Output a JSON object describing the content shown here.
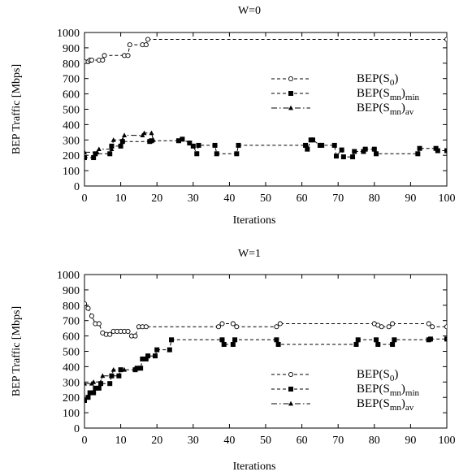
{
  "chart_data": [
    {
      "type": "line",
      "title": "W=0",
      "xlabel": "Iterations",
      "ylabel": "BEP Traffic [Mbps]",
      "xlim": [
        0,
        100
      ],
      "ylim": [
        0,
        1000
      ],
      "xticks": [
        0,
        10,
        20,
        30,
        40,
        50,
        60,
        70,
        80,
        90,
        100
      ],
      "yticks": [
        0,
        100,
        200,
        300,
        400,
        500,
        600,
        700,
        800,
        900,
        1000
      ],
      "grid": false,
      "legend_position": "right",
      "series": [
        {
          "name": "BEP(S0)",
          "legend_main": "BEP(S",
          "legend_sub": "0",
          "legend_close": ")",
          "marker": "circle-open",
          "dash": "dashed",
          "x": [
            0,
            1,
            1.5,
            2,
            4,
            5,
            5.5,
            11,
            12,
            12.5,
            16,
            17,
            17.5,
            100
          ],
          "y": [
            810,
            810,
            820,
            820,
            820,
            820,
            850,
            850,
            850,
            920,
            920,
            920,
            955,
            955
          ]
        },
        {
          "name": "BEP(Smn)min",
          "legend_main": "BEP(S",
          "legend_sub": "mn",
          "legend_close": ")",
          "legend_sub2": "min",
          "marker": "square-filled",
          "dash": "dashed",
          "x": [
            0,
            2.5,
            3,
            7,
            7.5,
            10,
            10.5,
            18,
            18.5,
            26,
            27,
            29,
            30,
            31,
            31.5,
            36,
            36.5,
            42,
            42.5,
            61,
            61.5,
            62.5,
            63,
            65,
            65.5,
            69,
            69.5,
            71,
            71.5,
            74,
            74.5,
            77,
            77.5,
            80,
            80.5,
            92,
            92.5,
            97,
            97.5,
            100
          ],
          "y": [
            185,
            185,
            210,
            210,
            260,
            260,
            290,
            290,
            295,
            295,
            305,
            280,
            260,
            210,
            265,
            265,
            210,
            210,
            265,
            265,
            240,
            300,
            300,
            265,
            265,
            265,
            195,
            235,
            190,
            190,
            225,
            225,
            240,
            240,
            210,
            210,
            245,
            245,
            230,
            230
          ]
        },
        {
          "name": "BEP(Smn)av",
          "legend_main": "BEP(S",
          "legend_sub": "mn",
          "legend_close": ")",
          "legend_sub2": "av",
          "marker": "triangle-filled",
          "dash": "dashdot",
          "x": [
            0,
            3.5,
            4,
            7.5,
            8,
            10.5,
            11,
            16,
            16.5,
            18.5,
            19
          ],
          "y": [
            220,
            220,
            240,
            240,
            300,
            300,
            330,
            330,
            345,
            345,
            300
          ]
        }
      ]
    },
    {
      "type": "line",
      "title": "W=1",
      "xlabel": "Iterations",
      "ylabel": "BEP Traffic [Mbps]",
      "xlim": [
        0,
        100
      ],
      "ylim": [
        0,
        1000
      ],
      "xticks": [
        0,
        10,
        20,
        30,
        40,
        50,
        60,
        70,
        80,
        90,
        100
      ],
      "yticks": [
        0,
        100,
        200,
        300,
        400,
        500,
        600,
        700,
        800,
        900,
        1000
      ],
      "grid": false,
      "legend_position": "lower-right",
      "series": [
        {
          "name": "BEP(S0)",
          "legend_main": "BEP(S",
          "legend_sub": "0",
          "legend_close": ")",
          "marker": "circle-open",
          "dash": "dashed",
          "x": [
            0,
            1,
            2,
            3,
            4,
            5,
            6,
            7,
            8,
            9,
            10,
            11,
            12,
            13,
            14,
            15,
            16,
            17,
            37,
            38,
            41,
            42,
            53,
            54,
            80,
            81,
            82,
            84,
            85,
            95,
            96,
            100
          ],
          "y": [
            810,
            780,
            730,
            680,
            680,
            620,
            610,
            610,
            630,
            630,
            630,
            630,
            630,
            600,
            600,
            660,
            660,
            660,
            660,
            680,
            680,
            660,
            660,
            680,
            680,
            670,
            660,
            660,
            680,
            680,
            660,
            660
          ]
        },
        {
          "name": "BEP(Smn)min",
          "legend_main": "BEP(S",
          "legend_sub": "mn",
          "legend_close": ")",
          "legend_sub2": "min",
          "marker": "square-filled",
          "dash": "dashed",
          "x": [
            0,
            1,
            1.5,
            2.5,
            3,
            4,
            4.5,
            7,
            7.5,
            9.5,
            10,
            14,
            14.5,
            15.5,
            16,
            17,
            17.5,
            19.5,
            20,
            23.5,
            24,
            38,
            38.5,
            41,
            41.5,
            53,
            53.5,
            75,
            75.5,
            80.5,
            81,
            85,
            85.5,
            95,
            95.5,
            100
          ],
          "y": [
            180,
            200,
            230,
            230,
            260,
            260,
            290,
            290,
            340,
            340,
            380,
            380,
            390,
            390,
            450,
            450,
            470,
            470,
            510,
            510,
            575,
            575,
            545,
            545,
            575,
            575,
            545,
            545,
            575,
            575,
            545,
            545,
            575,
            575,
            580,
            580
          ]
        },
        {
          "name": "BEP(Smn)av",
          "legend_main": "BEP(S",
          "legend_sub": "mn",
          "legend_close": ")",
          "legend_sub2": "av",
          "marker": "triangle-filled",
          "dash": "dashdot",
          "x": [
            0,
            2,
            2.5,
            4.5,
            5,
            7.5,
            8,
            11
          ],
          "y": [
            290,
            290,
            300,
            300,
            340,
            340,
            380,
            380
          ]
        }
      ]
    }
  ]
}
